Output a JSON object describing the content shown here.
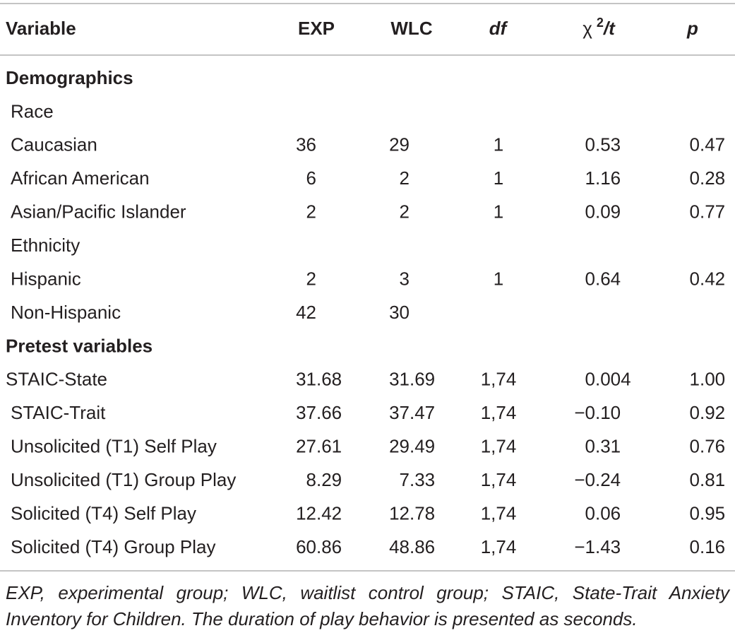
{
  "table": {
    "header": [
      "Variable",
      "EXP",
      "WLC",
      "df",
      {
        "base": "χ",
        "sup": "2",
        "rest": "/t"
      },
      "p"
    ],
    "rows": [
      {
        "bold": true,
        "indent": false,
        "cells": [
          "Demographics"
        ]
      },
      {
        "bold": false,
        "indent": true,
        "cells": [
          "Race"
        ]
      },
      {
        "bold": false,
        "indent": true,
        "cells": [
          "Caucasian",
          "36",
          "29",
          "1",
          "0.53",
          "0.47"
        ]
      },
      {
        "bold": false,
        "indent": true,
        "cells": [
          "African American",
          "6",
          "2",
          "1",
          "1.16",
          "0.28"
        ]
      },
      {
        "bold": false,
        "indent": true,
        "cells": [
          "Asian/Pacific Islander",
          "2",
          "2",
          "1",
          "0.09",
          "0.77"
        ]
      },
      {
        "bold": false,
        "indent": true,
        "cells": [
          "Ethnicity"
        ]
      },
      {
        "bold": false,
        "indent": true,
        "cells": [
          "Hispanic",
          "2",
          "3",
          "1",
          "0.64",
          "0.42"
        ]
      },
      {
        "bold": false,
        "indent": true,
        "cells": [
          "Non-Hispanic",
          "42",
          "30"
        ]
      },
      {
        "bold": true,
        "indent": false,
        "cells": [
          "Pretest variables"
        ]
      },
      {
        "bold": false,
        "indent": false,
        "cells": [
          "STAIC-State",
          "31.68",
          "31.69",
          "1,74",
          "0.004",
          "1.00"
        ]
      },
      {
        "bold": false,
        "indent": true,
        "cells": [
          "STAIC-Trait",
          "37.66",
          "37.47",
          "1,74",
          "−0.10",
          "0.92"
        ]
      },
      {
        "bold": false,
        "indent": true,
        "cells": [
          "Unsolicited (T1) Self Play",
          "27.61",
          "29.49",
          "1,74",
          "0.31",
          "0.76"
        ]
      },
      {
        "bold": false,
        "indent": true,
        "cells": [
          "Unsolicited (T1) Group Play",
          "8.29",
          "7.33",
          "1,74",
          "−0.24",
          "0.81"
        ]
      },
      {
        "bold": false,
        "indent": true,
        "cells": [
          "Solicited (T4) Self Play",
          "12.42",
          "12.78",
          "1,74",
          "0.06",
          "0.95"
        ]
      },
      {
        "bold": false,
        "indent": true,
        "cells": [
          "Solicited (T4) Group Play",
          "60.86",
          "48.86",
          "1,74",
          "−1.43",
          "0.16"
        ]
      }
    ],
    "footnote": "EXP, experimental group; WLC, waitlist control group; STAIC, State-Trait Anxiety Inventory for Children. The duration of play behavior is presented as seconds."
  }
}
